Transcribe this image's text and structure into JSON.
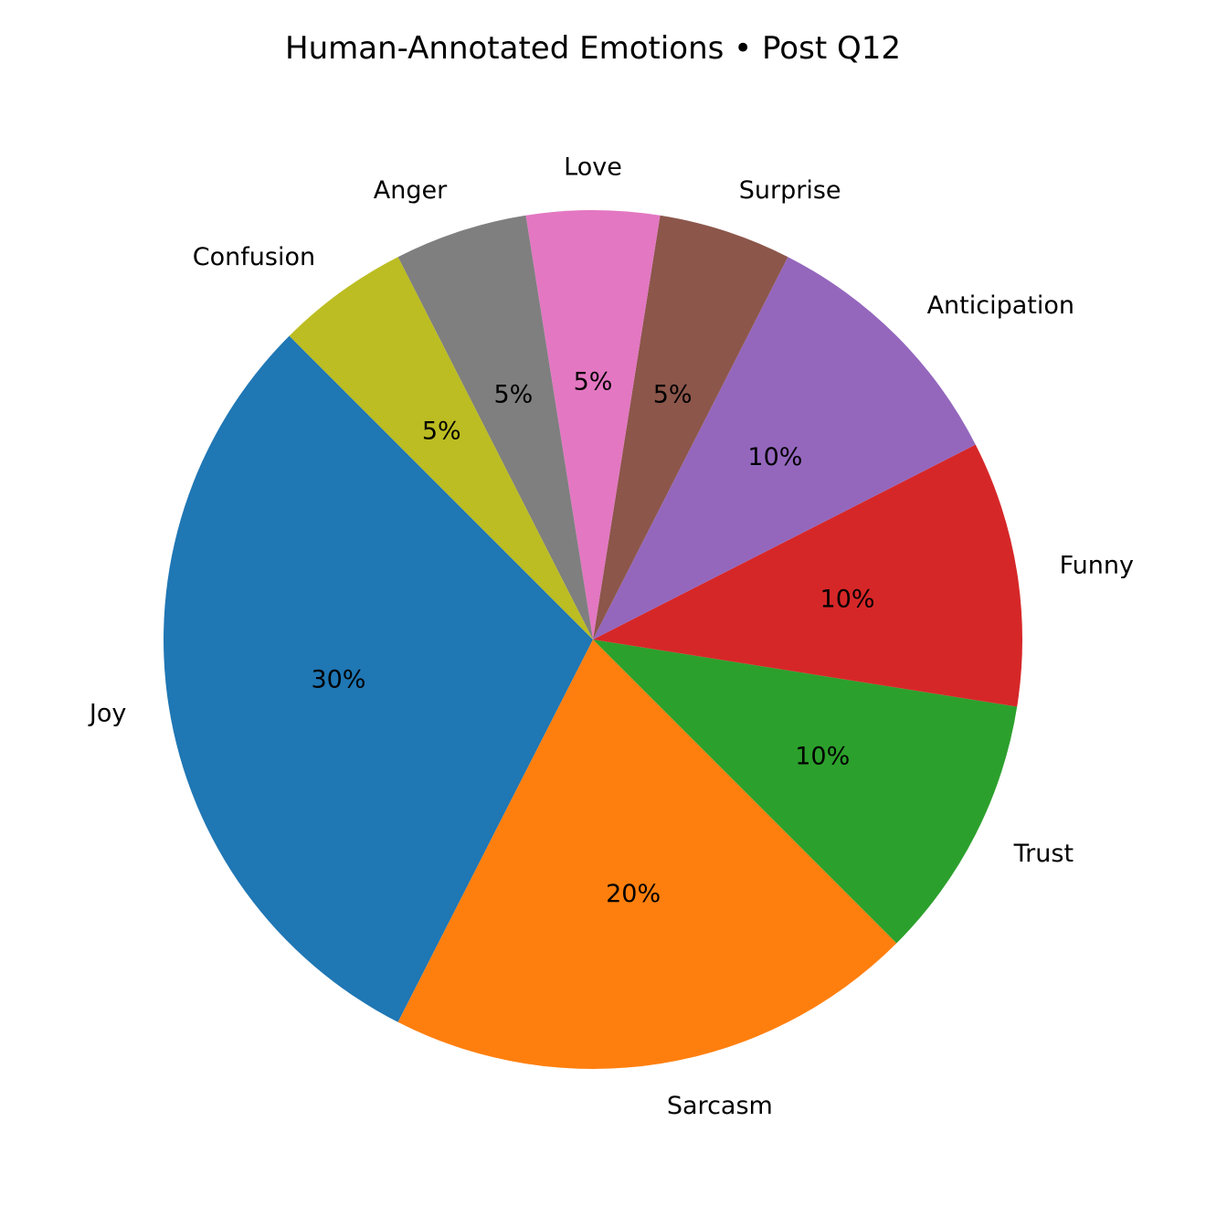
{
  "chart_data": {
    "type": "pie",
    "title": "Human-Annotated Emotions • Post Q12",
    "start_angle_deg": 135,
    "direction": "counterclockwise",
    "slices": [
      {
        "label": "Joy",
        "value": 30,
        "pct_label": "30%",
        "color": "#1f77b4"
      },
      {
        "label": "Sarcasm",
        "value": 20,
        "pct_label": "20%",
        "color": "#ff7f0e"
      },
      {
        "label": "Trust",
        "value": 10,
        "pct_label": "10%",
        "color": "#2ca02c"
      },
      {
        "label": "Funny",
        "value": 10,
        "pct_label": "10%",
        "color": "#d62728"
      },
      {
        "label": "Anticipation",
        "value": 10,
        "pct_label": "10%",
        "color": "#9467bd"
      },
      {
        "label": "Surprise",
        "value": 5,
        "pct_label": "5%",
        "color": "#8c564b"
      },
      {
        "label": "Love",
        "value": 5,
        "pct_label": "5%",
        "color": "#e377c2"
      },
      {
        "label": "Anger",
        "value": 5,
        "pct_label": "5%",
        "color": "#7f7f7f"
      },
      {
        "label": "Confusion",
        "value": 5,
        "pct_label": "5%",
        "color": "#bcbd22"
      }
    ]
  }
}
